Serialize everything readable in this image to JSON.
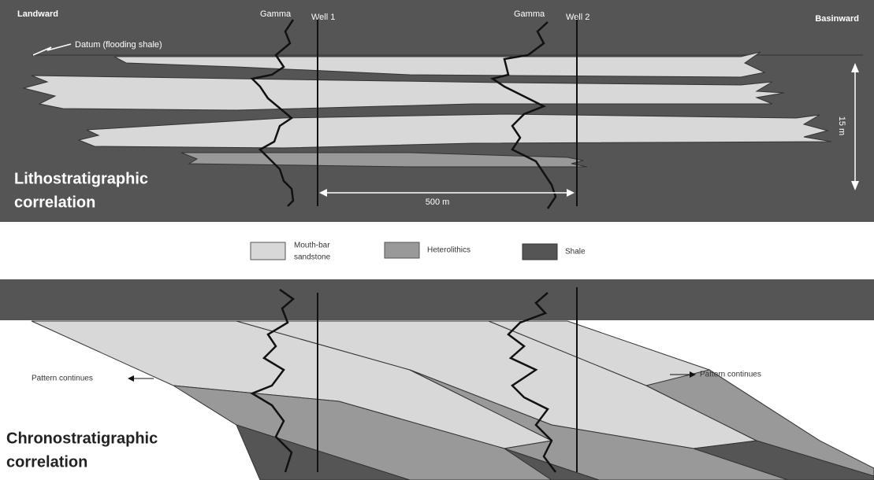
{
  "top_panel": {
    "landward": "Landward",
    "basinward": "Basinward",
    "datum": "Datum (flooding shale)",
    "thickness": "15 m",
    "distance": "500 m",
    "title": [
      "Lithostratigraphic",
      "correlation"
    ]
  },
  "wells": [
    {
      "log": "Gamma",
      "name": "Well 1"
    },
    {
      "log": "Gamma",
      "name": "Well 2"
    }
  ],
  "legend": [
    {
      "label": [
        "Mouth-bar",
        "sandstone"
      ]
    },
    {
      "label": [
        "Heterolithics"
      ]
    },
    {
      "label": [
        "Shale"
      ]
    }
  ],
  "bottom_panel": {
    "left_note": "Pattern continues",
    "right_note": "Pattern continues",
    "title": [
      "Chronostratigraphic",
      "correlation"
    ]
  }
}
